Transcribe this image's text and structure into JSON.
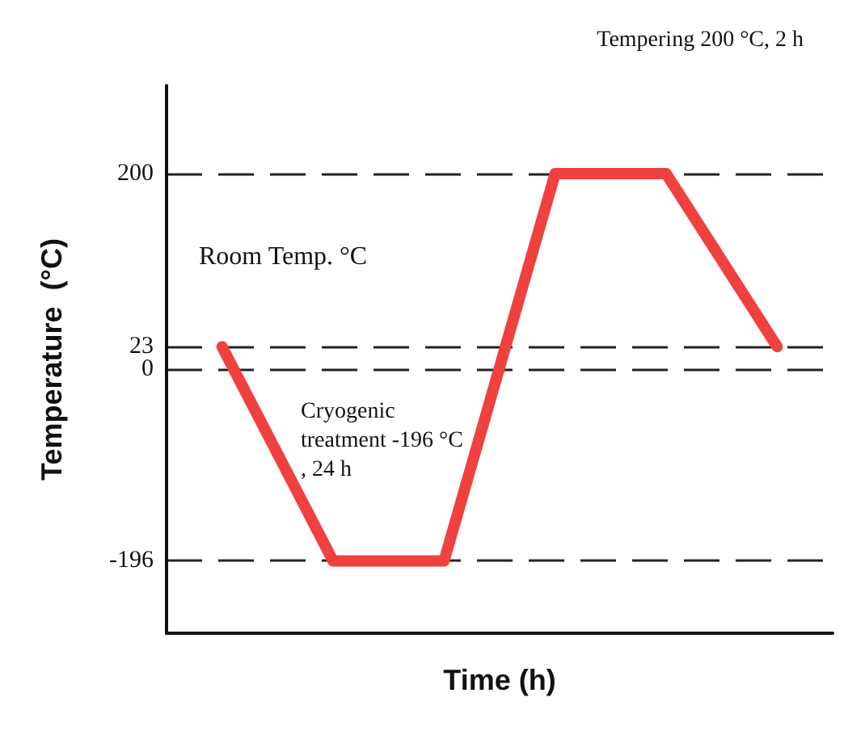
{
  "chart_data": {
    "type": "line",
    "xlabel": "Time (h)",
    "ylabel": "Temperature  (°C)",
    "categories": [
      null,
      null,
      null,
      null,
      null,
      null
    ],
    "series": [
      {
        "color": "#f0413f",
        "values": [
          23,
          -196,
          -196,
          200,
          200,
          23
        ]
      }
    ],
    "ylim": [
      -270,
      290
    ],
    "yticks": [
      -196,
      0,
      23,
      200
    ],
    "grid": "y",
    "line_style": "solid",
    "annotations": [
      "Tempering 200 °C, 2 h",
      "Room Temp. °C",
      "Cryogenic treatment -196 °C, 24 h"
    ]
  }
}
